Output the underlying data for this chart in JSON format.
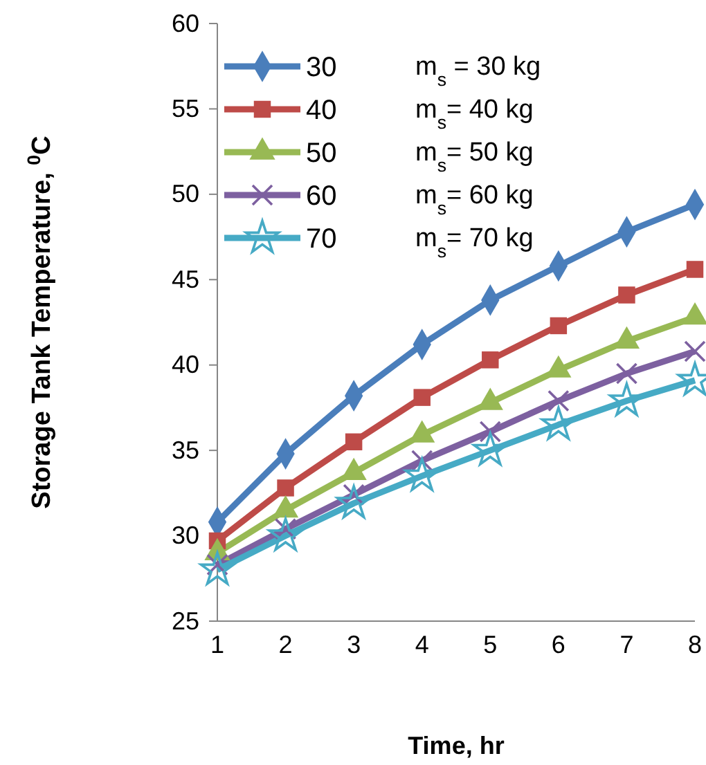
{
  "chart_data": {
    "type": "line",
    "xlabel": "Time, hr",
    "ylabel": "Storage Tank Temperature, $^{0}$C",
    "x": [
      1,
      2,
      3,
      4,
      5,
      6,
      7,
      8
    ],
    "xlim": [
      1,
      8
    ],
    "xticks": [
      1,
      2,
      3,
      4,
      5,
      6,
      7,
      8
    ],
    "ylim": [
      25,
      60
    ],
    "yticks": [
      25,
      30,
      35,
      40,
      45,
      50,
      55,
      60
    ],
    "grid": false,
    "legend": "top left",
    "series": [
      {
        "name": "30",
        "color": "#4a7ebb",
        "marker": "diamond",
        "values": [
          30.8,
          34.8,
          38.2,
          41.2,
          43.8,
          45.8,
          47.8,
          49.4
        ]
      },
      {
        "name": "40",
        "color": "#be4b48",
        "marker": "square",
        "values": [
          29.7,
          32.8,
          35.5,
          38.1,
          40.3,
          42.3,
          44.1,
          45.6
        ]
      },
      {
        "name": "50",
        "color": "#98b954",
        "marker": "triangle",
        "values": [
          29.0,
          31.5,
          33.7,
          35.9,
          37.8,
          39.7,
          41.4,
          42.8
        ]
      },
      {
        "name": "60",
        "color": "#7d60a0",
        "marker": "cross",
        "values": [
          28.3,
          30.4,
          32.4,
          34.4,
          36.1,
          37.9,
          39.5,
          40.8
        ]
      },
      {
        "name": "70",
        "color": "#46aac5",
        "marker": "star",
        "values": [
          28.0,
          30.0,
          31.9,
          33.5,
          35.0,
          36.5,
          37.9,
          39.1
        ]
      }
    ],
    "annotations": [
      "m$_{s}$ = 30 kg",
      "m$_{s}$= 40 kg",
      "m$_{s}$= 50 kg",
      "m$_{s}$= 60 kg",
      "m$_{s}$= 70 kg"
    ]
  }
}
